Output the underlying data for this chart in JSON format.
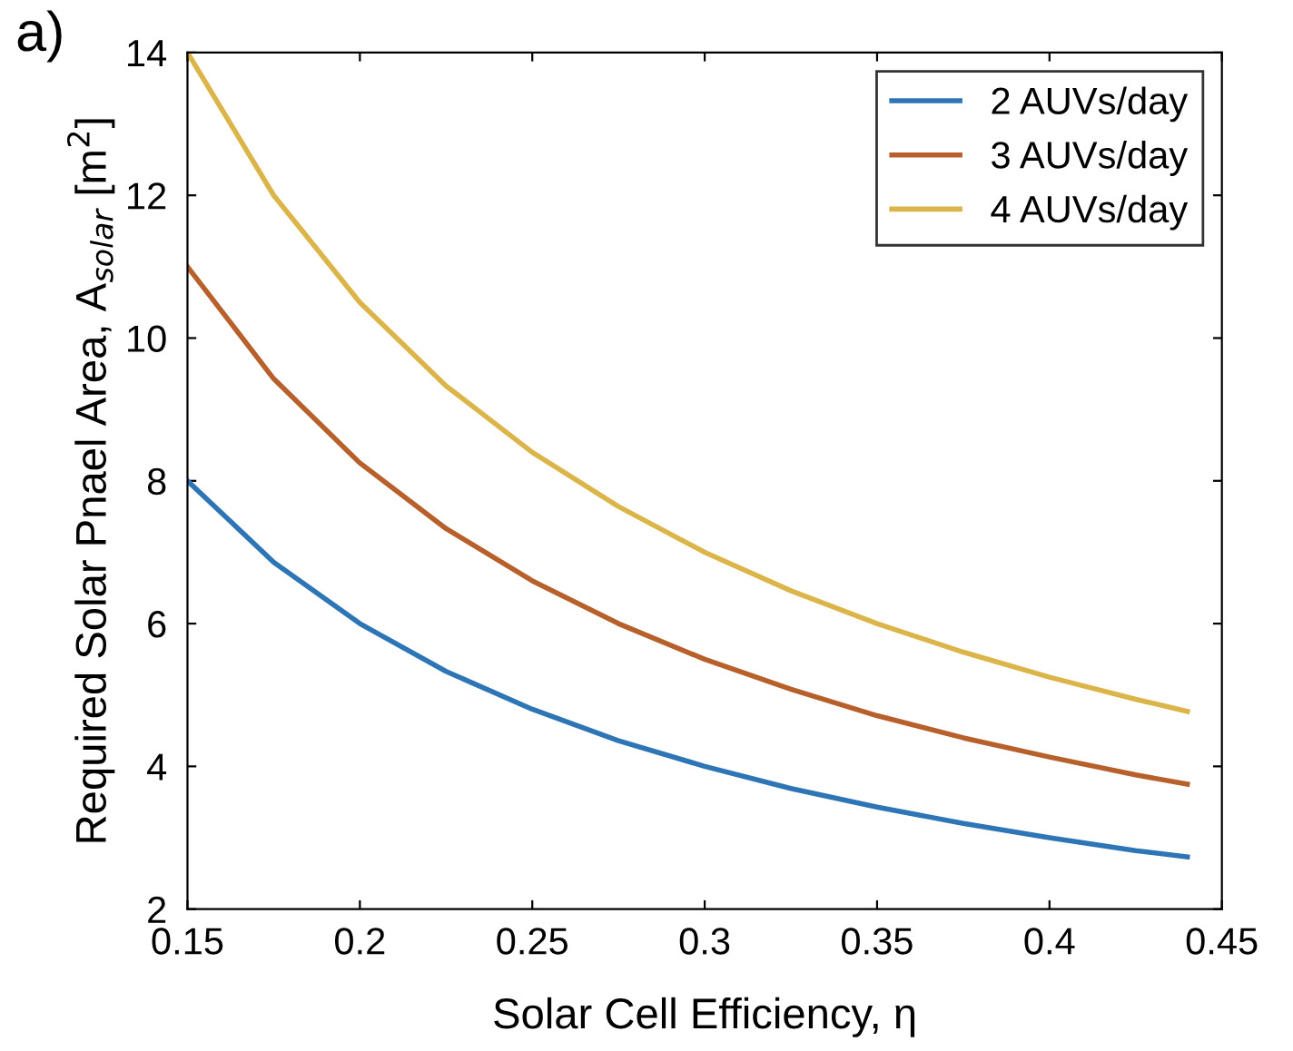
{
  "chart_data": {
    "type": "line",
    "xlabel": "Solar Cell Efficiency, η",
    "ylabel": "Required Solar Pnael Area, A$_{solar}$ [m$^{2}$]",
    "annotations": [
      "a)"
    ],
    "x": [
      0.15,
      0.175,
      0.2,
      0.225,
      0.25,
      0.275,
      0.3,
      0.325,
      0.35,
      0.375,
      0.4,
      0.425,
      0.44
    ],
    "series": [
      {
        "name": "2 AUVs/day",
        "color": "#2e75b6",
        "values": [
          8.0,
          6.86,
          6.0,
          5.33,
          4.8,
          4.36,
          4.0,
          3.69,
          3.43,
          3.2,
          3.0,
          2.82,
          2.73
        ]
      },
      {
        "name": "3 AUVs/day",
        "color": "#b8602c",
        "values": [
          11.0,
          9.43,
          8.25,
          7.33,
          6.6,
          6.0,
          5.5,
          5.08,
          4.71,
          4.4,
          4.13,
          3.88,
          3.75
        ]
      },
      {
        "name": "4 AUVs/day",
        "color": "#dcb54a",
        "values": [
          14.0,
          12.0,
          10.5,
          9.33,
          8.4,
          7.64,
          7.0,
          6.46,
          6.0,
          5.6,
          5.25,
          4.94,
          4.77
        ]
      }
    ],
    "xlim": [
      0.15,
      0.45
    ],
    "xticks": [
      0.15,
      0.2,
      0.25,
      0.3,
      0.35,
      0.4,
      0.45
    ],
    "ylim": [
      2,
      14
    ],
    "yticks": [
      2,
      4,
      6,
      8,
      10,
      12,
      14
    ],
    "grid": false,
    "legend": "top right",
    "marker": "none",
    "line_style": "solid"
  }
}
